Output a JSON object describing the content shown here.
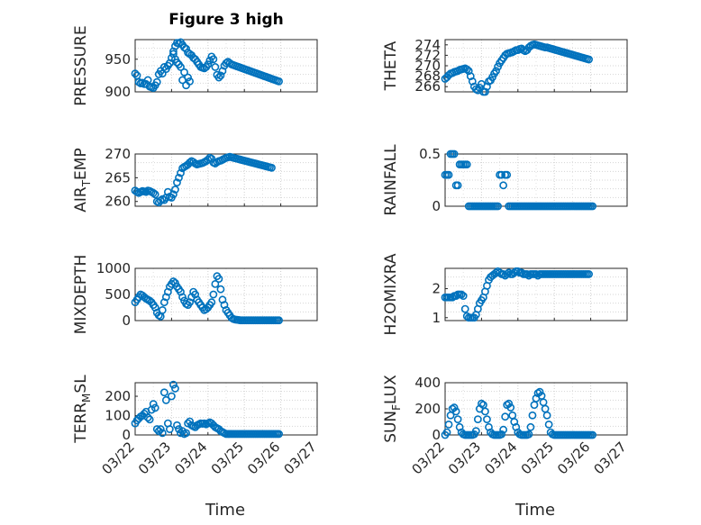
{
  "figure": {
    "title": "Figure 3 high",
    "xlabel": "Time",
    "x_ticks": [
      "03/22",
      "03/23",
      "03/24",
      "03/25",
      "03/26",
      "03/27"
    ]
  },
  "chart_data": [
    {
      "type": "scatter",
      "ylabel": "PRESSURE",
      "ylim": [
        900,
        980
      ],
      "yticks": [
        900,
        950
      ],
      "grid": true,
      "marker": "circle",
      "color": "#0072BD",
      "x": [
        0,
        0.05,
        0.1,
        0.15,
        0.2,
        0.25,
        0.3,
        0.35,
        0.4,
        0.45,
        0.5,
        0.55,
        0.6,
        0.65,
        0.7,
        0.75,
        0.8,
        0.85,
        0.9,
        0.95,
        1.0,
        1.05,
        1.1,
        1.15,
        1.2,
        1.25,
        1.3,
        1.35,
        1.4,
        1.45,
        1.5,
        1.55,
        1.6,
        1.65,
        1.7,
        1.75,
        1.8,
        1.85,
        1.9,
        1.95,
        2.0,
        2.05,
        2.1,
        2.15,
        2.2,
        2.25,
        2.3,
        2.35,
        2.4,
        2.45,
        2.5,
        2.55,
        2.6,
        2.65,
        2.7,
        2.75,
        2.8,
        2.85,
        2.9,
        2.95,
        3.0,
        3.05,
        3.1,
        3.15,
        3.2,
        3.25,
        3.3,
        3.35,
        3.4,
        3.45,
        3.5,
        3.55,
        3.6,
        3.65,
        3.7,
        3.75,
        3.8,
        3.85,
        3.9,
        3.95,
        1.05,
        1.15,
        1.25,
        1.35,
        1.45,
        1.5,
        1.1,
        1.2,
        1.3,
        1.4
      ],
      "y": [
        928,
        925,
        915,
        913,
        914,
        912,
        912,
        918,
        908,
        907,
        906,
        910,
        915,
        927,
        932,
        928,
        938,
        935,
        940,
        944,
        952,
        962,
        970,
        975,
        974,
        976,
        972,
        968,
        966,
        960,
        958,
        956,
        952,
        950,
        946,
        942,
        938,
        937,
        936,
        938,
        942,
        948,
        954,
        950,
        938,
        926,
        922,
        925,
        932,
        940,
        944,
        946,
        944,
        942,
        941,
        940,
        939,
        938,
        937,
        936,
        935,
        934,
        933,
        932,
        931,
        930,
        929,
        928,
        927,
        926,
        925,
        924,
        923,
        922,
        921,
        920,
        919,
        918,
        917,
        916,
        958,
        945,
        938,
        930,
        922,
        916,
        950,
        942,
        918,
        910
      ]
    },
    {
      "type": "scatter",
      "ylabel": "THETA",
      "ylim": [
        265,
        275
      ],
      "yticks": [
        266,
        268,
        270,
        272,
        274
      ],
      "grid": true,
      "marker": "circle",
      "color": "#0072BD",
      "x": [
        0,
        0.05,
        0.1,
        0.15,
        0.2,
        0.25,
        0.3,
        0.35,
        0.4,
        0.45,
        0.5,
        0.55,
        0.6,
        0.65,
        0.7,
        0.75,
        0.8,
        0.85,
        0.9,
        0.95,
        1.0,
        1.05,
        1.1,
        1.15,
        1.2,
        1.25,
        1.3,
        1.35,
        1.4,
        1.45,
        1.5,
        1.55,
        1.6,
        1.65,
        1.7,
        1.75,
        1.8,
        1.85,
        1.9,
        1.95,
        2.0,
        2.05,
        2.1,
        2.15,
        2.2,
        2.25,
        2.3,
        2.35,
        2.4,
        2.45,
        2.5,
        2.55,
        2.6,
        2.65,
        2.7,
        2.75,
        2.8,
        2.85,
        2.9,
        2.95,
        3.0,
        3.05,
        3.1,
        3.15,
        3.2,
        3.25,
        3.3,
        3.35,
        3.4,
        3.45,
        3.5,
        3.55,
        3.6,
        3.65,
        3.7,
        3.75,
        3.8,
        3.85,
        3.9,
        3.95
      ],
      "y": [
        267.5,
        267.8,
        268.2,
        268.5,
        268.6,
        268.8,
        268.9,
        269.0,
        269.2,
        269.3,
        269.4,
        269.5,
        269.3,
        269.0,
        268.0,
        267.0,
        266.0,
        265.5,
        265.3,
        265.8,
        266.5,
        265.0,
        264.8,
        266.0,
        267.0,
        267.2,
        267.8,
        268.5,
        269.0,
        269.8,
        270.5,
        271.0,
        271.5,
        272.0,
        272.3,
        272.4,
        272.5,
        272.6,
        272.8,
        273.0,
        273.0,
        273.2,
        273.3,
        273.0,
        272.8,
        273.0,
        273.5,
        273.8,
        274.0,
        274.1,
        274.0,
        273.9,
        273.8,
        273.7,
        273.6,
        273.5,
        273.5,
        273.4,
        273.3,
        273.2,
        273.1,
        273.0,
        272.9,
        272.8,
        272.7,
        272.6,
        272.5,
        272.4,
        272.3,
        272.2,
        272.1,
        272.0,
        271.9,
        271.8,
        271.7,
        271.6,
        271.5,
        271.4,
        271.3,
        271.2
      ]
    },
    {
      "type": "scatter",
      "ylabel": "AIR_TEMP",
      "ylim": [
        259,
        270
      ],
      "yticks": [
        260,
        265,
        270
      ],
      "grid": true,
      "marker": "circle",
      "color": "#0072BD",
      "x": [
        0,
        0.05,
        0.1,
        0.15,
        0.2,
        0.25,
        0.3,
        0.35,
        0.4,
        0.45,
        0.5,
        0.55,
        0.6,
        0.65,
        0.7,
        0.75,
        0.8,
        0.85,
        0.9,
        0.95,
        1.0,
        1.05,
        1.1,
        1.15,
        1.2,
        1.25,
        1.3,
        1.35,
        1.4,
        1.45,
        1.5,
        1.55,
        1.6,
        1.65,
        1.7,
        1.75,
        1.8,
        1.85,
        1.9,
        1.95,
        2.0,
        2.05,
        2.1,
        2.15,
        2.2,
        2.25,
        2.3,
        2.35,
        2.4,
        2.45,
        2.5,
        2.55,
        2.6,
        2.65,
        2.7,
        2.75,
        2.8,
        2.85,
        2.9,
        2.95,
        3.0,
        3.05,
        3.1,
        3.15,
        3.2,
        3.25,
        3.3,
        3.35,
        3.4,
        3.45,
        3.5,
        3.55,
        3.6,
        3.65,
        3.7,
        3.75
      ],
      "y": [
        262.3,
        262.0,
        261.8,
        262.0,
        262.2,
        262.1,
        262.0,
        262.3,
        262.2,
        262.0,
        261.8,
        261.5,
        260.0,
        259.8,
        260.2,
        260.5,
        260.3,
        260.8,
        262.0,
        261.0,
        260.8,
        261.5,
        262.5,
        264.0,
        265.0,
        266.0,
        267.0,
        267.3,
        267.5,
        267.8,
        268.2,
        268.5,
        268.3,
        268.0,
        267.8,
        267.9,
        268.0,
        268.1,
        268.3,
        268.5,
        268.8,
        269.2,
        269.0,
        268.2,
        268.0,
        268.3,
        268.5,
        268.6,
        268.8,
        269.0,
        269.2,
        269.3,
        269.4,
        269.3,
        269.2,
        269.1,
        269.0,
        268.9,
        268.8,
        268.7,
        268.6,
        268.5,
        268.4,
        268.3,
        268.2,
        268.1,
        268.0,
        267.9,
        267.8,
        267.7,
        267.6,
        267.5,
        267.4,
        267.3,
        267.2,
        267.1
      ]
    },
    {
      "type": "scatter",
      "ylabel": "RAINFALL",
      "ylim": [
        0,
        0.5
      ],
      "yticks": [
        0,
        0.5
      ],
      "grid": true,
      "marker": "circle",
      "color": "#0072BD",
      "x": [
        0,
        0.05,
        0.1,
        0.15,
        0.2,
        0.25,
        0.3,
        0.35,
        0.4,
        0.45,
        0.5,
        0.55,
        0.6,
        0.65,
        0.7,
        0.75,
        0.8,
        0.85,
        0.9,
        0.95,
        1.0,
        1.05,
        1.1,
        1.15,
        1.2,
        1.25,
        1.3,
        1.35,
        1.4,
        1.45,
        1.5,
        1.55,
        1.6,
        1.65,
        1.7,
        1.75,
        1.8,
        1.85,
        1.9,
        1.95,
        2.0,
        2.05,
        2.1,
        2.15,
        2.2,
        2.25,
        2.3,
        2.35,
        2.4,
        2.45,
        2.5,
        2.55,
        2.6,
        2.65,
        2.7,
        2.75,
        2.8,
        2.85,
        2.9,
        2.95,
        3.0,
        3.05,
        3.1,
        3.15,
        3.2,
        3.25,
        3.3,
        3.35,
        3.4,
        3.45,
        3.5,
        3.55,
        3.6,
        3.65,
        3.7,
        3.75,
        3.8,
        3.85,
        3.9,
        3.95,
        4.0,
        4.05
      ],
      "y": [
        0.3,
        0.3,
        0.3,
        0.5,
        0.5,
        0.5,
        0.2,
        0.2,
        0.4,
        0.4,
        0.4,
        0.4,
        0.4,
        0,
        0,
        0,
        0,
        0,
        0,
        0,
        0,
        0,
        0,
        0,
        0,
        0,
        0,
        0,
        0,
        0,
        0.3,
        0.3,
        0.2,
        0.3,
        0.3,
        0,
        0,
        0,
        0,
        0,
        0,
        0,
        0,
        0,
        0,
        0,
        0,
        0,
        0,
        0,
        0,
        0,
        0,
        0,
        0,
        0,
        0,
        0,
        0,
        0,
        0,
        0,
        0,
        0,
        0,
        0,
        0,
        0,
        0,
        0,
        0,
        0,
        0,
        0,
        0,
        0,
        0,
        0,
        0,
        0,
        0,
        0
      ]
    },
    {
      "type": "scatter",
      "ylabel": "MIXDEPTH",
      "ylim": [
        0,
        1000
      ],
      "yticks": [
        0,
        500,
        1000
      ],
      "grid": true,
      "marker": "circle",
      "color": "#0072BD",
      "x": [
        0,
        0.05,
        0.1,
        0.15,
        0.2,
        0.25,
        0.3,
        0.35,
        0.4,
        0.45,
        0.5,
        0.55,
        0.6,
        0.65,
        0.7,
        0.75,
        0.8,
        0.85,
        0.9,
        0.95,
        1.0,
        1.05,
        1.1,
        1.15,
        1.2,
        1.25,
        1.3,
        1.35,
        1.4,
        1.45,
        1.5,
        1.55,
        1.6,
        1.65,
        1.7,
        1.75,
        1.8,
        1.85,
        1.9,
        1.95,
        2.0,
        2.05,
        2.1,
        2.15,
        2.2,
        2.25,
        2.3,
        2.35,
        2.4,
        2.45,
        2.5,
        2.55,
        2.6,
        2.65,
        2.7,
        2.75,
        2.8,
        2.85,
        2.9,
        2.95,
        3.0,
        3.05,
        3.1,
        3.15,
        3.2,
        3.25,
        3.3,
        3.35,
        3.4,
        3.45,
        3.5,
        3.55,
        3.6,
        3.65,
        3.7,
        3.75,
        3.8,
        3.85,
        3.9,
        3.95
      ],
      "y": [
        350,
        400,
        450,
        500,
        480,
        450,
        420,
        400,
        380,
        350,
        300,
        250,
        150,
        100,
        80,
        200,
        350,
        450,
        550,
        650,
        700,
        750,
        720,
        650,
        600,
        550,
        450,
        380,
        320,
        300,
        350,
        450,
        550,
        500,
        400,
        350,
        300,
        250,
        200,
        220,
        250,
        300,
        350,
        500,
        700,
        850,
        800,
        600,
        400,
        300,
        200,
        150,
        100,
        50,
        30,
        20,
        15,
        10,
        5,
        5,
        5,
        5,
        5,
        5,
        5,
        5,
        5,
        5,
        5,
        5,
        5,
        5,
        5,
        5,
        5,
        5,
        5,
        5,
        5,
        5
      ]
    },
    {
      "type": "scatter",
      "ylabel": "H2OMIXRA",
      "ylim": [
        0.9,
        2.7
      ],
      "yticks": [
        1,
        2
      ],
      "grid": true,
      "marker": "circle",
      "color": "#0072BD",
      "x": [
        0,
        0.05,
        0.1,
        0.15,
        0.2,
        0.25,
        0.3,
        0.35,
        0.4,
        0.45,
        0.5,
        0.55,
        0.6,
        0.65,
        0.7,
        0.75,
        0.8,
        0.85,
        0.9,
        0.95,
        1.0,
        1.05,
        1.1,
        1.15,
        1.2,
        1.25,
        1.3,
        1.35,
        1.4,
        1.45,
        1.5,
        1.55,
        1.6,
        1.65,
        1.7,
        1.75,
        1.8,
        1.85,
        1.9,
        1.95,
        2.0,
        2.05,
        2.1,
        2.15,
        2.2,
        2.25,
        2.3,
        2.35,
        2.4,
        2.45,
        2.5,
        2.55,
        2.6,
        2.65,
        2.7,
        2.75,
        2.8,
        2.85,
        2.9,
        2.95,
        3.0,
        3.05,
        3.1,
        3.15,
        3.2,
        3.25,
        3.3,
        3.35,
        3.4,
        3.45,
        3.5,
        3.55,
        3.6,
        3.65,
        3.7,
        3.75,
        3.8,
        3.85,
        3.9,
        3.95
      ],
      "y": [
        1.7,
        1.7,
        1.7,
        1.7,
        1.7,
        1.75,
        1.75,
        1.8,
        1.8,
        1.8,
        1.75,
        1.3,
        1.05,
        1.0,
        1.0,
        1.0,
        1.0,
        1.1,
        1.3,
        1.5,
        1.6,
        1.7,
        1.9,
        2.1,
        2.3,
        2.4,
        2.45,
        2.5,
        2.55,
        2.6,
        2.55,
        2.5,
        2.5,
        2.45,
        2.5,
        2.55,
        2.5,
        2.5,
        2.55,
        2.6,
        2.6,
        2.55,
        2.55,
        2.5,
        2.5,
        2.5,
        2.45,
        2.5,
        2.5,
        2.5,
        2.5,
        2.45,
        2.5,
        2.5,
        2.5,
        2.5,
        2.5,
        2.5,
        2.5,
        2.5,
        2.5,
        2.5,
        2.5,
        2.5,
        2.5,
        2.5,
        2.5,
        2.5,
        2.5,
        2.5,
        2.5,
        2.5,
        2.5,
        2.5,
        2.5,
        2.5,
        2.5,
        2.5,
        2.5,
        2.5
      ]
    },
    {
      "type": "scatter",
      "ylabel": "TERR_MSL",
      "ylim": [
        0,
        270
      ],
      "yticks": [
        0,
        100,
        200
      ],
      "grid": true,
      "marker": "circle",
      "color": "#0072BD",
      "x": [
        0,
        0.05,
        0.1,
        0.15,
        0.2,
        0.25,
        0.3,
        0.35,
        0.4,
        0.45,
        0.5,
        0.55,
        0.6,
        0.65,
        0.7,
        0.75,
        0.8,
        0.85,
        0.9,
        0.95,
        1.0,
        1.05,
        1.1,
        1.15,
        1.2,
        1.25,
        1.3,
        1.35,
        1.4,
        1.45,
        1.5,
        1.55,
        1.6,
        1.65,
        1.7,
        1.75,
        1.8,
        1.85,
        1.9,
        1.95,
        2.0,
        2.05,
        2.1,
        2.15,
        2.2,
        2.25,
        2.3,
        2.35,
        2.4,
        2.45,
        2.5,
        2.55,
        2.6,
        2.65,
        2.7,
        2.75,
        2.8,
        2.85,
        2.9,
        2.95,
        3.0,
        3.05,
        3.1,
        3.15,
        3.2,
        3.25,
        3.3,
        3.35,
        3.4,
        3.45,
        3.5,
        3.55,
        3.6,
        3.65,
        3.7,
        3.75,
        3.8,
        3.85,
        3.9,
        3.95
      ],
      "y": [
        60,
        75,
        85,
        95,
        100,
        110,
        120,
        90,
        80,
        130,
        160,
        140,
        30,
        20,
        30,
        10,
        220,
        180,
        60,
        30,
        200,
        260,
        240,
        50,
        30,
        10,
        20,
        5,
        10,
        60,
        70,
        50,
        45,
        40,
        50,
        55,
        60,
        58,
        60,
        55,
        60,
        65,
        60,
        50,
        40,
        35,
        30,
        20,
        15,
        10,
        5,
        5,
        5,
        5,
        5,
        5,
        5,
        5,
        5,
        5,
        5,
        5,
        5,
        5,
        5,
        5,
        5,
        5,
        5,
        5,
        5,
        5,
        5,
        5,
        5,
        5,
        5,
        5,
        5,
        5
      ]
    },
    {
      "type": "scatter",
      "ylabel": "SUN_FLUX",
      "ylim": [
        0,
        400
      ],
      "yticks": [
        0,
        200,
        400
      ],
      "grid": true,
      "marker": "circle",
      "color": "#0072BD",
      "x": [
        0,
        0.05,
        0.1,
        0.15,
        0.2,
        0.25,
        0.3,
        0.35,
        0.4,
        0.45,
        0.5,
        0.55,
        0.6,
        0.65,
        0.7,
        0.75,
        0.8,
        0.85,
        0.9,
        0.95,
        1.0,
        1.05,
        1.1,
        1.15,
        1.2,
        1.25,
        1.3,
        1.35,
        1.4,
        1.45,
        1.5,
        1.55,
        1.6,
        1.65,
        1.7,
        1.75,
        1.8,
        1.85,
        1.9,
        1.95,
        2.0,
        2.05,
        2.1,
        2.15,
        2.2,
        2.25,
        2.3,
        2.35,
        2.4,
        2.45,
        2.5,
        2.55,
        2.6,
        2.65,
        2.7,
        2.75,
        2.8,
        2.85,
        2.9,
        2.95,
        3.0,
        3.05,
        3.1,
        3.15,
        3.2,
        3.25,
        3.3,
        3.35,
        3.4,
        3.45,
        3.5,
        3.55,
        3.6,
        3.65,
        3.7,
        3.75,
        3.8,
        3.85,
        3.9,
        3.95,
        4.0,
        4.05
      ],
      "y": [
        0,
        20,
        80,
        150,
        200,
        210,
        180,
        120,
        60,
        20,
        5,
        0,
        0,
        0,
        0,
        0,
        5,
        30,
        120,
        200,
        240,
        230,
        180,
        120,
        60,
        20,
        5,
        0,
        0,
        0,
        0,
        5,
        40,
        140,
        230,
        240,
        210,
        150,
        100,
        60,
        20,
        5,
        0,
        0,
        0,
        0,
        5,
        60,
        150,
        230,
        280,
        320,
        330,
        300,
        250,
        200,
        150,
        80,
        20,
        5,
        0,
        0,
        0,
        0,
        0,
        0,
        0,
        0,
        0,
        0,
        0,
        0,
        0,
        0,
        0,
        0,
        0,
        0,
        0,
        0,
        0,
        0
      ]
    }
  ]
}
